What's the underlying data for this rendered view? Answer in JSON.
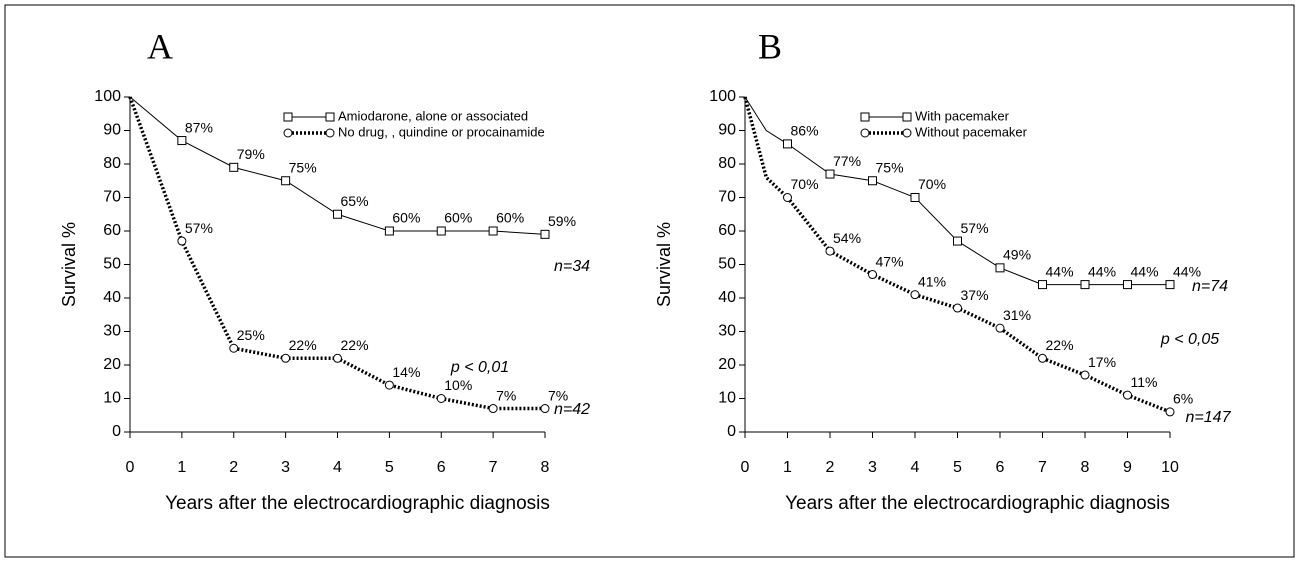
{
  "chart_data": [
    {
      "type": "line",
      "panel_label": "A",
      "ylabel": "Survival %",
      "xlabel": "Years after the electrocardiographic diagnosis",
      "xlim": [
        0,
        8
      ],
      "ylim": [
        0,
        100
      ],
      "xticks": [
        0,
        1,
        2,
        3,
        4,
        5,
        6,
        7,
        8
      ],
      "yticks": [
        0,
        10,
        20,
        30,
        40,
        50,
        60,
        70,
        80,
        90,
        100
      ],
      "series": [
        {
          "name": "Amiodarone, alone or associated",
          "color": "#000000",
          "style": "solid",
          "marker": "square",
          "x": [
            0,
            1,
            2,
            3,
            4,
            5,
            6,
            7,
            8
          ],
          "values": [
            100,
            87,
            79,
            75,
            65,
            60,
            60,
            60,
            59
          ],
          "value_labels": [
            null,
            "87%",
            "79%",
            "75%",
            "65%",
            "60%",
            "60%",
            "60%",
            "59%"
          ]
        },
        {
          "name": "No drug, , quindine or procainamide",
          "color": "#000000",
          "style": "dotted",
          "marker": "circle",
          "x": [
            0,
            1,
            2,
            3,
            4,
            5,
            6,
            7,
            8
          ],
          "values": [
            100,
            57,
            25,
            22,
            22,
            14,
            10,
            7,
            7
          ],
          "value_labels": [
            null,
            "57%",
            "25%",
            "22%",
            "22%",
            "14%",
            "10%",
            "7%",
            "7%"
          ]
        }
      ],
      "annotations": [
        "n=34",
        "p < 0,01",
        "n=42"
      ]
    },
    {
      "type": "line",
      "panel_label": "B",
      "ylabel": "Survival %",
      "xlabel": "Years after the electrocardiographic diagnosis",
      "xlim": [
        0,
        10
      ],
      "ylim": [
        0,
        100
      ],
      "xticks": [
        0,
        1,
        2,
        3,
        4,
        5,
        6,
        7,
        8,
        9,
        10
      ],
      "yticks": [
        0,
        10,
        20,
        30,
        40,
        50,
        60,
        70,
        80,
        90,
        100
      ],
      "series": [
        {
          "name": "With pacemaker",
          "color": "#000000",
          "style": "solid",
          "marker": "square",
          "x": [
            0,
            0.2,
            0.5,
            1,
            2,
            3,
            4,
            5,
            6,
            7,
            8,
            9,
            10
          ],
          "values": [
            100,
            96,
            90,
            86,
            77,
            75,
            70,
            57,
            49,
            44,
            44,
            44,
            44
          ],
          "value_labels": [
            null,
            null,
            null,
            "86%",
            "77%",
            "75%",
            "70%",
            "57%",
            "49%",
            "44%",
            "44%",
            "44%",
            "44%"
          ]
        },
        {
          "name": "Without pacemaker",
          "color": "#000000",
          "style": "dotted",
          "marker": "circle",
          "x": [
            0,
            0.5,
            1,
            2,
            3,
            4,
            5,
            6,
            7,
            8,
            9,
            10
          ],
          "values": [
            100,
            76,
            70,
            54,
            47,
            41,
            37,
            31,
            22,
            17,
            11,
            6
          ],
          "value_labels": [
            null,
            null,
            "70%",
            "54%",
            "47%",
            "41%",
            "37%",
            "31%",
            "22%",
            "17%",
            "11%",
            "6%"
          ]
        }
      ],
      "annotations": [
        "n=74",
        "p < 0,05",
        "n=147"
      ]
    }
  ]
}
